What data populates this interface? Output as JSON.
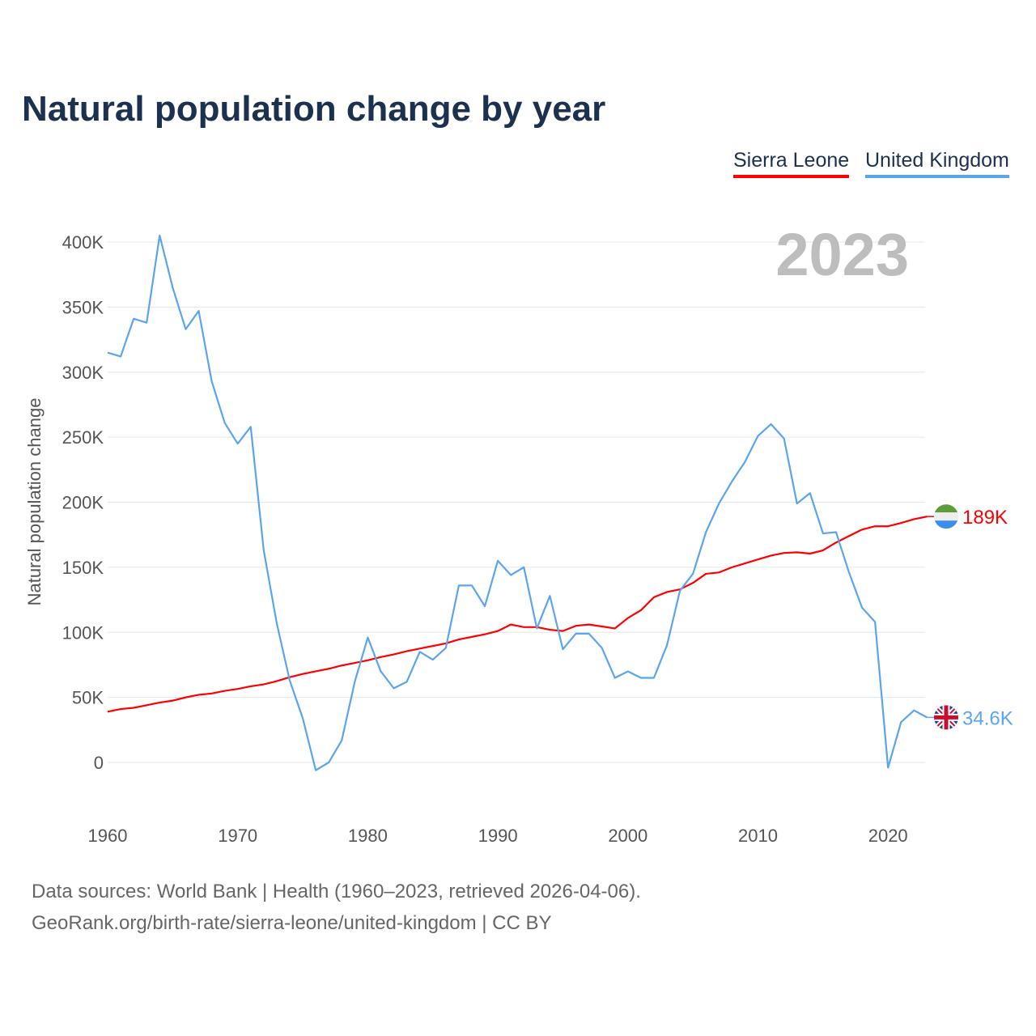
{
  "title": "Natural population change by year",
  "legend": [
    {
      "name": "Sierra Leone",
      "color": "#ff0000"
    },
    {
      "name": "United Kingdom",
      "color": "#5aa5ee"
    }
  ],
  "year_label": "2023",
  "footer": {
    "line1": "Data sources: World Bank | Health (1960–2023, retrieved 2026-04-06).",
    "line2": "GeoRank.org/birth-rate/sierra-leone/united-kingdom | CC BY"
  },
  "chart_data": {
    "type": "line",
    "title": "Natural population change by year",
    "xlabel": "",
    "ylabel": "Natural population change",
    "xlim": [
      1960,
      2023
    ],
    "ylim": [
      -50000,
      420000
    ],
    "xticks": [
      1960,
      1970,
      1980,
      1990,
      2000,
      2010,
      2020
    ],
    "yticks": [
      {
        "v": 0,
        "l": "0"
      },
      {
        "v": 50000,
        "l": "50K"
      },
      {
        "v": 100000,
        "l": "100K"
      },
      {
        "v": 150000,
        "l": "150K"
      },
      {
        "v": 200000,
        "l": "200K"
      },
      {
        "v": 250000,
        "l": "250K"
      },
      {
        "v": 300000,
        "l": "300K"
      },
      {
        "v": 350000,
        "l": "350K"
      },
      {
        "v": 400000,
        "l": "400K"
      }
    ],
    "grid": true,
    "x_start": 1960,
    "series": [
      {
        "name": "Sierra Leone",
        "color": "#ff0000",
        "end_label": "189K",
        "values": [
          39,
          41,
          42,
          44,
          46,
          47.5,
          50,
          52,
          53,
          55,
          56.5,
          58.5,
          60,
          62.5,
          65.5,
          68,
          70,
          72,
          74.5,
          76.5,
          78.5,
          81,
          83,
          85.5,
          87.5,
          89.5,
          91.5,
          94.5,
          96.5,
          98.5,
          101,
          106,
          104,
          104,
          102,
          101,
          105,
          106,
          104.5,
          103,
          111,
          117,
          127,
          131,
          133,
          138,
          145,
          146,
          150,
          153,
          156,
          159,
          161,
          161.5,
          160.5,
          163,
          169,
          174,
          179,
          181.5,
          181.5,
          184,
          187,
          189
        ]
      },
      {
        "name": "United Kingdom",
        "color": "#5aa5ee",
        "end_label": "34.6K",
        "values": [
          315,
          312,
          341,
          338,
          405,
          365,
          333,
          347,
          293,
          261,
          245,
          258,
          163,
          107,
          63,
          34,
          -6,
          0,
          17,
          62,
          96,
          70,
          57,
          62,
          85,
          79,
          88,
          136,
          136,
          120,
          155,
          144,
          150,
          103,
          128,
          87,
          99,
          99,
          88,
          65,
          70,
          65,
          65,
          90,
          132,
          145,
          177,
          199,
          216,
          231,
          251,
          260,
          249,
          199,
          207,
          176,
          177,
          146,
          119,
          108,
          -4,
          31,
          40,
          34.6
        ]
      }
    ],
    "value_unit": "thousands"
  }
}
